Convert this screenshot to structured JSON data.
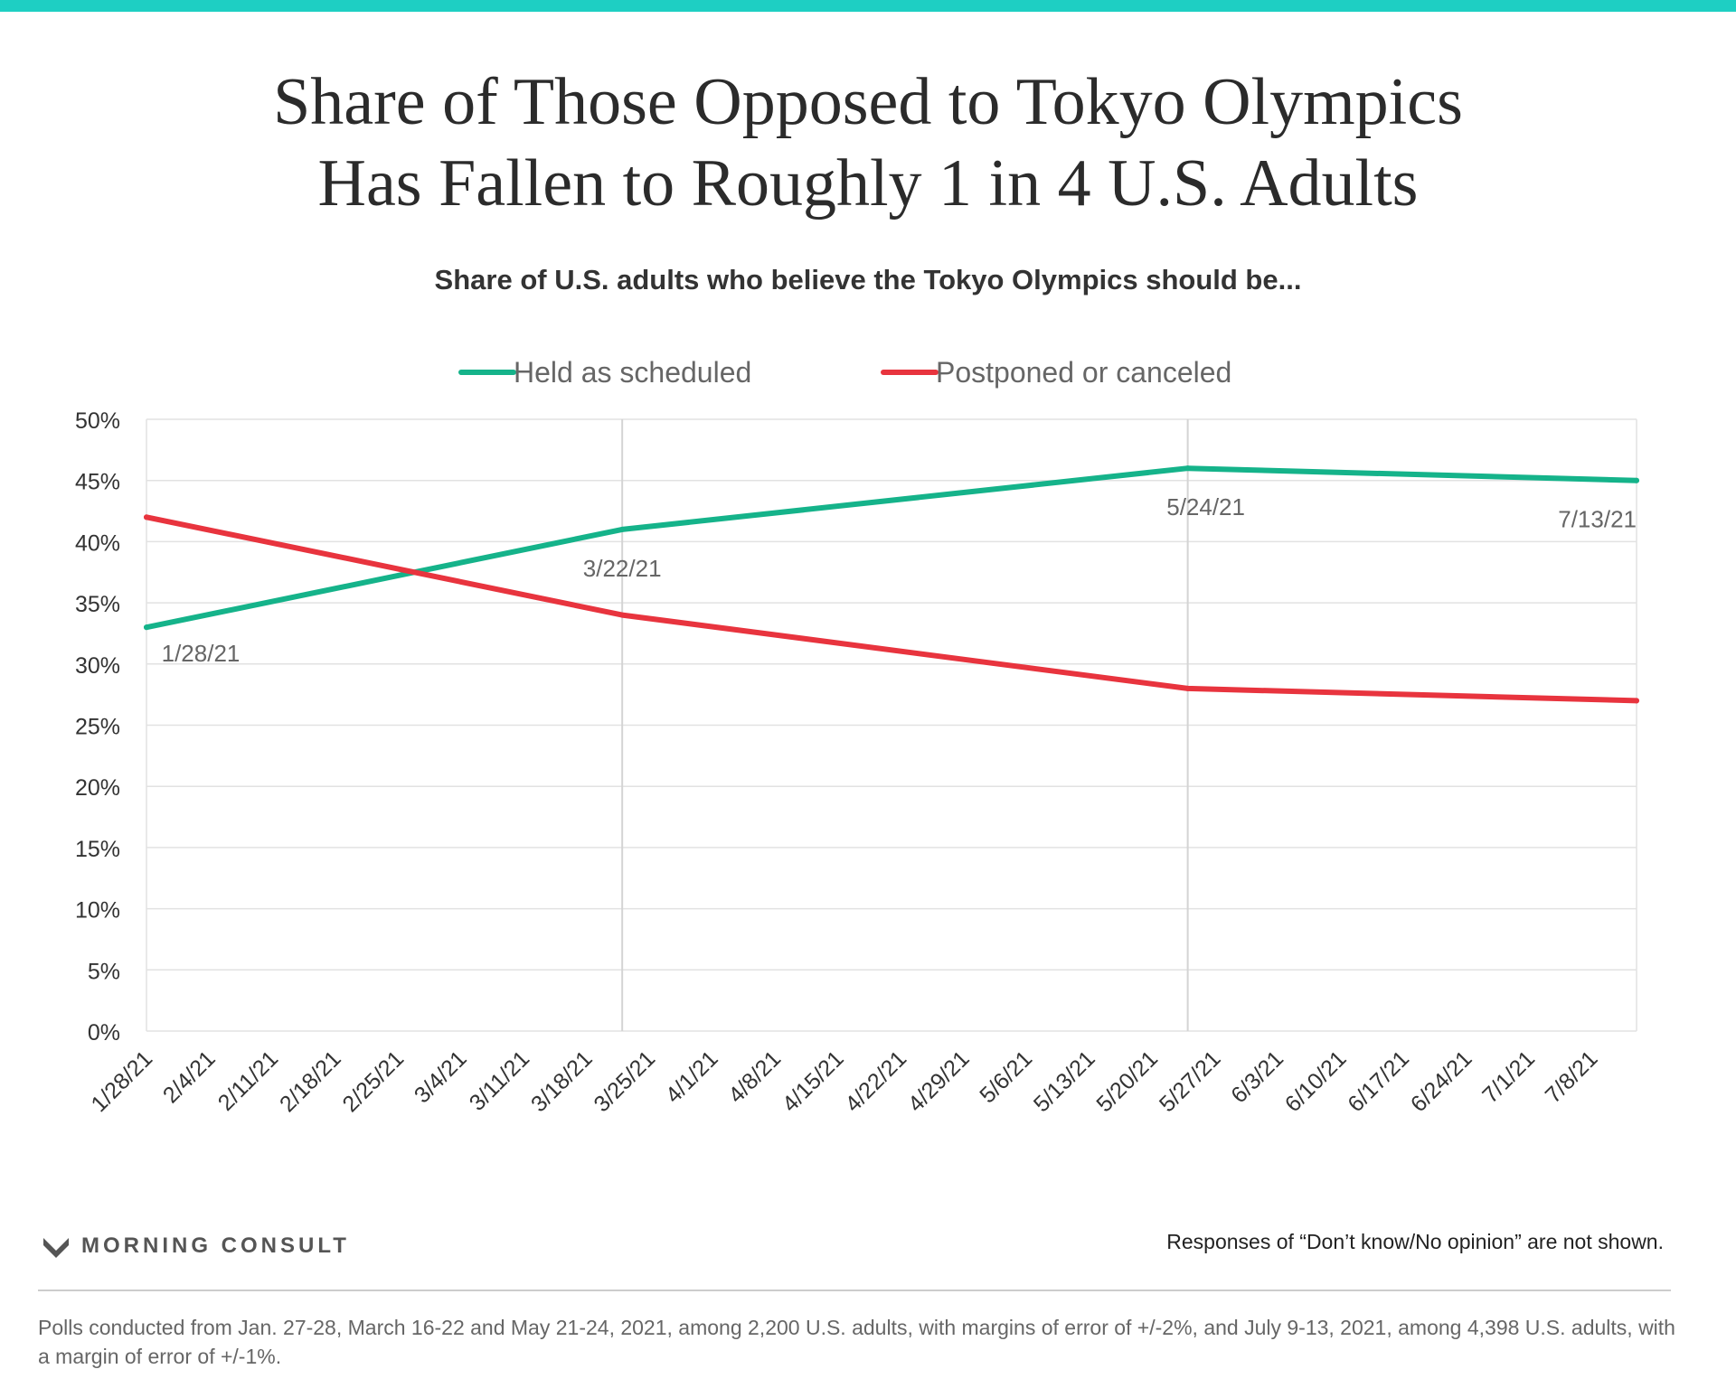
{
  "title_lines": [
    "Share of Those Opposed to Tokyo Olympics",
    "Has Fallen to Roughly 1 in 4 U.S. Adults"
  ],
  "subtitle": "Share of U.S. adults who believe the Tokyo Olympics should be...",
  "colors": {
    "top_bar": "#1ecfc3",
    "held": "#15b38a",
    "postponed": "#e8343e",
    "grid": "#e2e2e2",
    "axis_text": "#333333",
    "point_label": "#666666"
  },
  "chart_data": {
    "type": "line",
    "x_tick_labels": [
      "1/28/21",
      "2/4/21",
      "2/11/21",
      "2/18/21",
      "2/25/21",
      "3/4/21",
      "3/11/21",
      "3/18/21",
      "3/25/21",
      "4/1/21",
      "4/8/21",
      "4/15/21",
      "4/22/21",
      "4/29/21",
      "5/6/21",
      "5/13/21",
      "5/20/21",
      "5/27/21",
      "6/3/21",
      "6/10/21",
      "6/17/21",
      "6/24/21",
      "7/1/21",
      "7/8/21"
    ],
    "x_range": [
      "1/28/21",
      "7/13/21"
    ],
    "y_ticks": [
      "0%",
      "5%",
      "10%",
      "15%",
      "20%",
      "25%",
      "30%",
      "35%",
      "40%",
      "45%",
      "50%"
    ],
    "ylim": [
      0,
      50
    ],
    "y_unit": "%",
    "grid": true,
    "legend_position": "top",
    "series": [
      {
        "name": "Held as scheduled",
        "color_key": "held",
        "points": [
          {
            "x": "1/28/21",
            "y": 33
          },
          {
            "x": "3/22/21",
            "y": 41
          },
          {
            "x": "5/24/21",
            "y": 46
          },
          {
            "x": "7/13/21",
            "y": 45
          }
        ]
      },
      {
        "name": "Postponed or canceled",
        "color_key": "postponed",
        "points": [
          {
            "x": "1/28/21",
            "y": 42
          },
          {
            "x": "3/22/21",
            "y": 34
          },
          {
            "x": "5/24/21",
            "y": 28
          },
          {
            "x": "7/13/21",
            "y": 27
          }
        ]
      }
    ],
    "point_labels": [
      "1/28/21",
      "3/22/21",
      "5/24/21",
      "7/13/21"
    ],
    "reference_lines": [
      "3/22/21",
      "5/24/21"
    ]
  },
  "brand": "MORNING CONSULT",
  "note": "Responses of “Don’t know/No opinion” are not shown.",
  "footnote": "Polls conducted from Jan. 27-28, March 16-22 and May 21-24, 2021, among 2,200 U.S. adults, with margins of error of +/-2%, and July 9-13, 2021, among 4,398 U.S. adults, with a margin of error of +/-1%."
}
